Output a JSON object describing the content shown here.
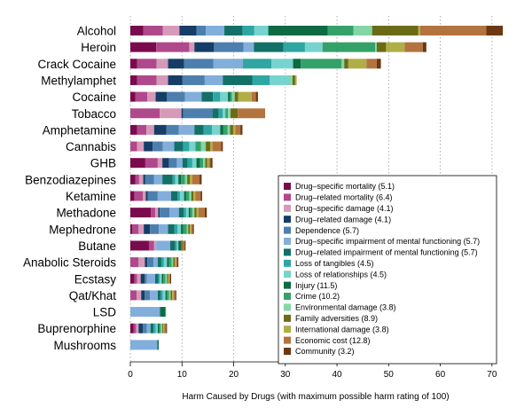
{
  "chart_data": {
    "type": "bar",
    "orientation": "horizontal",
    "stacked": true,
    "title": "",
    "xlabel": "Harm Caused by Drugs (with maximum possible harm rating of 100)",
    "ylabel": "",
    "xlim": [
      0,
      72
    ],
    "xticks": [
      0,
      10,
      20,
      30,
      40,
      50,
      60,
      70
    ],
    "grid": "vertical dotted",
    "legend_position": "bottom-right",
    "criteria": [
      {
        "name": "Drug–specific mortality (5.1)",
        "color": "#7a0a4e"
      },
      {
        "name": "Drug–related mortality (6.4)",
        "color": "#b0488c"
      },
      {
        "name": "Drug–specific damage (4.1)",
        "color": "#d69ab8"
      },
      {
        "name": "Drug–related damage (4.1)",
        "color": "#153d66"
      },
      {
        "name": "Dependence (5.7)",
        "color": "#4d7fae"
      },
      {
        "name": "Drug–specific impairment of mental functioning (5.7)",
        "color": "#82aedb"
      },
      {
        "name": "Drug–related impairment of mental functioning (5.7)",
        "color": "#137067"
      },
      {
        "name": "Loss of tangibles (4.5)",
        "color": "#2fa6a2"
      },
      {
        "name": "Loss of relationships (4.5)",
        "color": "#77d3ce"
      },
      {
        "name": "Injury (11.5)",
        "color": "#0d6a43"
      },
      {
        "name": "Crime (10.2)",
        "color": "#34a268"
      },
      {
        "name": "Environmental damage (3.8)",
        "color": "#84d6a6"
      },
      {
        "name": "Family adversities (8.9)",
        "color": "#6b6b16"
      },
      {
        "name": "International damage (3.8)",
        "color": "#b0ae47"
      },
      {
        "name": "Economic cost (12.8)",
        "color": "#b3733f"
      },
      {
        "name": "Community (3.2)",
        "color": "#6b3811"
      }
    ],
    "categories": [
      "Alcohol",
      "Heroin",
      "Crack Cocaine",
      "Methylamphet",
      "Cocaine",
      "Tobacco",
      "Amphetamine",
      "Cannabis",
      "GHB",
      "Benzodiazepines",
      "Ketamine",
      "Methadone",
      "Mephedrone",
      "Butane",
      "Anabolic Steroids",
      "Ecstasy",
      "Qat/Khat",
      "LSD",
      "Buprenorphine",
      "Mushrooms"
    ],
    "series_values": [
      [
        2.5,
        3.8,
        3.2,
        3.3,
        1.8,
        3.6,
        3.5,
        2.3,
        2.7,
        11.5,
        5.0,
        3.6,
        8.9,
        0.4,
        12.8,
        3.2
      ],
      [
        5.0,
        6.4,
        1.0,
        3.8,
        5.7,
        2.0,
        5.7,
        4.2,
        3.4,
        0.0,
        10.2,
        0.3,
        1.8,
        3.6,
        3.5,
        0.7
      ],
      [
        1.3,
        3.8,
        2.2,
        3.1,
        5.7,
        5.7,
        0.0,
        5.5,
        4.2,
        1.5,
        7.9,
        0.5,
        0.8,
        3.5,
        2.0,
        0.8
      ],
      [
        1.3,
        3.8,
        2.2,
        2.8,
        4.3,
        3.5,
        5.7,
        3.4,
        3.9,
        0.0,
        0.0,
        0.5,
        0.5,
        0.3,
        0.0,
        0.0
      ],
      [
        1.0,
        2.3,
        1.6,
        2.2,
        3.5,
        3.2,
        2.2,
        1.4,
        1.5,
        0.4,
        0.4,
        0.5,
        0.7,
        2.6,
        0.8,
        0.4
      ],
      [
        0.0,
        5.7,
        4.2,
        0.3,
        5.7,
        0.0,
        1.2,
        0.8,
        0.5,
        0.0,
        0.5,
        0.5,
        1.4,
        0.0,
        5.3,
        0.0
      ],
      [
        1.3,
        1.8,
        1.5,
        2.4,
        2.4,
        3.0,
        1.8,
        1.6,
        1.6,
        0.6,
        0.8,
        0.5,
        0.6,
        0.4,
        1.0,
        0.4
      ],
      [
        0.0,
        1.3,
        1.3,
        1.7,
        2.0,
        2.2,
        1.7,
        1.2,
        1.2,
        0.0,
        1.1,
        0.9,
        0.9,
        0.4,
        1.7,
        0.3
      ],
      [
        2.9,
        2.4,
        0.9,
        1.3,
        1.5,
        1.1,
        1.0,
        0.9,
        0.8,
        0.7,
        0.6,
        0.4,
        0.4,
        0.3,
        0.3,
        0.4
      ],
      [
        1.0,
        0.7,
        0.8,
        0.4,
        1.7,
        1.6,
        2.0,
        0.5,
        0.6,
        0.5,
        0.8,
        0.4,
        0.5,
        0.5,
        1.4,
        0.4
      ],
      [
        0.8,
        1.6,
        0.6,
        0.4,
        1.9,
        2.6,
        1.2,
        0.5,
        0.8,
        0.4,
        0.6,
        0.4,
        0.4,
        0.4,
        1.0,
        0.3
      ],
      [
        4.0,
        0.8,
        0.6,
        0.3,
        1.9,
        1.8,
        0.9,
        0.5,
        0.5,
        0.3,
        0.4,
        0.4,
        0.4,
        0.4,
        1.2,
        0.4
      ],
      [
        0.4,
        1.2,
        1.0,
        1.2,
        1.7,
        1.8,
        1.2,
        0.6,
        0.7,
        0.4,
        0.7,
        0.3,
        0.3,
        0.3,
        0.3,
        0.2
      ],
      [
        3.6,
        1.0,
        0.4,
        0.0,
        0.0,
        2.7,
        1.0,
        0.3,
        0.3,
        0.5,
        0.0,
        0.0,
        0.3,
        0.0,
        0.4,
        0.2
      ],
      [
        0.0,
        1.6,
        1.2,
        0.5,
        1.2,
        0.8,
        0.7,
        0.5,
        0.6,
        0.4,
        0.5,
        0.3,
        0.3,
        0.2,
        0.3,
        0.2
      ],
      [
        0.8,
        0.5,
        0.7,
        0.8,
        0.4,
        1.6,
        0.6,
        0.3,
        0.4,
        0.3,
        0.4,
        0.3,
        0.2,
        0.2,
        0.2,
        0.2
      ],
      [
        0.0,
        1.2,
        0.9,
        0.7,
        1.0,
        1.5,
        0.6,
        0.4,
        0.5,
        0.3,
        0.4,
        0.3,
        0.3,
        0.3,
        0.3,
        0.2
      ],
      [
        0.0,
        0.0,
        0.0,
        0.0,
        0.0,
        5.7,
        0.3,
        0.0,
        0.0,
        0.7,
        0.2,
        0.0,
        0.0,
        0.0,
        0.0,
        0.0
      ],
      [
        0.6,
        0.5,
        0.5,
        0.8,
        0.8,
        0.7,
        0.6,
        0.4,
        0.4,
        0.3,
        0.3,
        0.3,
        0.2,
        0.2,
        0.3,
        0.2
      ],
      [
        0.0,
        0.0,
        0.0,
        0.0,
        0.0,
        5.2,
        0.3,
        0.0,
        0.0,
        0.0,
        0.0,
        0.0,
        0.0,
        0.0,
        0.0,
        0.0
      ]
    ]
  }
}
